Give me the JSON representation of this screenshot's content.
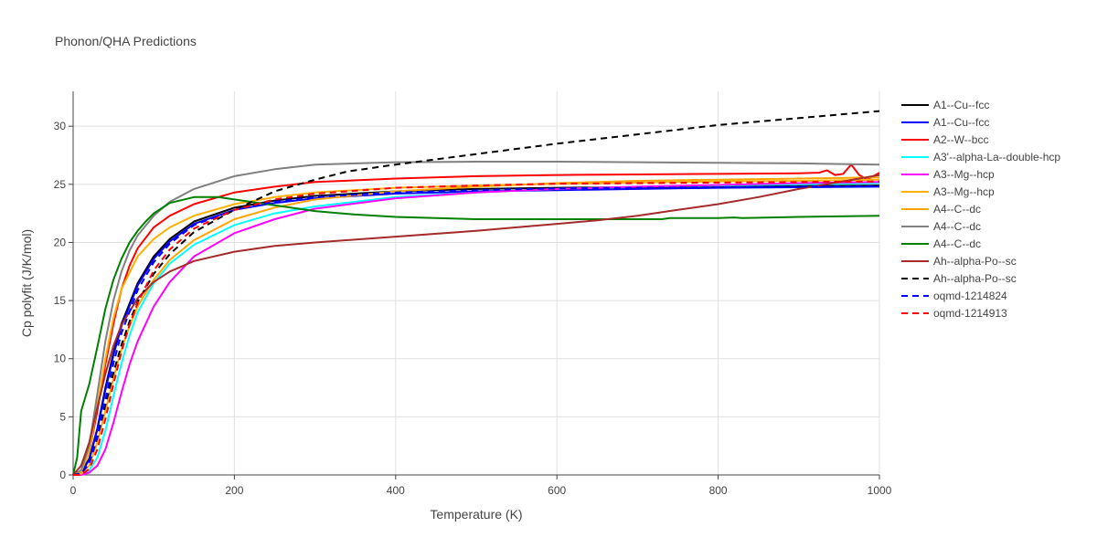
{
  "chart_data": {
    "type": "line",
    "title": "Phonon/QHA Predictions",
    "xlabel": "Temperature (K)",
    "ylabel": "Cp polyfit (J/K/mol)",
    "xlim": [
      0,
      1000
    ],
    "ylim": [
      0,
      33
    ],
    "x_ticks": [
      0,
      200,
      400,
      600,
      800,
      1000
    ],
    "y_ticks": [
      0,
      5,
      10,
      15,
      20,
      25,
      30
    ],
    "grid": true,
    "legend_position": "right",
    "series": [
      {
        "name": "A1--Cu--fcc",
        "color": "#000000",
        "dash": "solid",
        "points": [
          [
            0,
            0
          ],
          [
            10,
            0.2
          ],
          [
            20,
            1.4
          ],
          [
            30,
            4
          ],
          [
            40,
            7.5
          ],
          [
            50,
            10.5
          ],
          [
            60,
            13
          ],
          [
            80,
            16.5
          ],
          [
            100,
            18.8
          ],
          [
            120,
            20.3
          ],
          [
            150,
            21.8
          ],
          [
            200,
            23
          ],
          [
            250,
            23.6
          ],
          [
            300,
            24
          ],
          [
            400,
            24.4
          ],
          [
            500,
            24.6
          ],
          [
            600,
            24.7
          ],
          [
            700,
            24.75
          ],
          [
            800,
            24.8
          ],
          [
            900,
            24.85
          ],
          [
            1000,
            24.9
          ]
        ]
      },
      {
        "name": "A1--Cu--fcc",
        "color": "#0000ff",
        "dash": "solid",
        "points": [
          [
            0,
            0
          ],
          [
            10,
            0.2
          ],
          [
            20,
            1.3
          ],
          [
            30,
            3.9
          ],
          [
            40,
            7.3
          ],
          [
            50,
            10.3
          ],
          [
            60,
            12.8
          ],
          [
            80,
            16.3
          ],
          [
            100,
            18.6
          ],
          [
            120,
            20.1
          ],
          [
            150,
            21.6
          ],
          [
            200,
            22.8
          ],
          [
            250,
            23.4
          ],
          [
            300,
            23.8
          ],
          [
            400,
            24.2
          ],
          [
            500,
            24.4
          ],
          [
            600,
            24.5
          ],
          [
            700,
            24.6
          ],
          [
            800,
            24.7
          ],
          [
            900,
            24.75
          ],
          [
            1000,
            24.8
          ]
        ]
      },
      {
        "name": "A2--W--bcc",
        "color": "#ff0000",
        "dash": "solid",
        "points": [
          [
            0,
            0
          ],
          [
            10,
            0.3
          ],
          [
            20,
            2
          ],
          [
            30,
            5.5
          ],
          [
            40,
            9.5
          ],
          [
            50,
            13
          ],
          [
            60,
            16
          ],
          [
            70,
            18
          ],
          [
            80,
            19.5
          ],
          [
            100,
            21.3
          ],
          [
            120,
            22.3
          ],
          [
            150,
            23.3
          ],
          [
            200,
            24.3
          ],
          [
            250,
            24.8
          ],
          [
            300,
            25.2
          ],
          [
            400,
            25.5
          ],
          [
            500,
            25.7
          ],
          [
            600,
            25.8
          ],
          [
            700,
            25.85
          ],
          [
            800,
            25.9
          ],
          [
            900,
            25.95
          ],
          [
            925,
            26
          ],
          [
            935,
            26.2
          ],
          [
            945,
            25.8
          ],
          [
            955,
            25.9
          ],
          [
            965,
            26.7
          ],
          [
            975,
            25.8
          ],
          [
            985,
            25.4
          ],
          [
            1000,
            26
          ]
        ]
      },
      {
        "name": "A3'--alpha-La--double-hcp",
        "color": "#00ffff",
        "dash": "solid",
        "points": [
          [
            0,
            0
          ],
          [
            10,
            0
          ],
          [
            20,
            0.4
          ],
          [
            30,
            1.5
          ],
          [
            40,
            3.8
          ],
          [
            50,
            6.8
          ],
          [
            60,
            9.6
          ],
          [
            70,
            12
          ],
          [
            80,
            14
          ],
          [
            100,
            16.5
          ],
          [
            120,
            18.2
          ],
          [
            150,
            19.8
          ],
          [
            200,
            21.5
          ],
          [
            250,
            22.5
          ],
          [
            300,
            23.1
          ],
          [
            400,
            23.9
          ],
          [
            500,
            24.3
          ],
          [
            600,
            24.6
          ],
          [
            700,
            24.8
          ],
          [
            800,
            24.9
          ],
          [
            900,
            25
          ],
          [
            1000,
            25.1
          ]
        ]
      },
      {
        "name": "A3--Mg--hcp",
        "color": "#ff00ff",
        "dash": "solid",
        "points": [
          [
            0,
            0
          ],
          [
            10,
            0
          ],
          [
            20,
            0.2
          ],
          [
            30,
            0.8
          ],
          [
            40,
            2.2
          ],
          [
            50,
            4.5
          ],
          [
            60,
            7.1
          ],
          [
            70,
            9.5
          ],
          [
            80,
            11.5
          ],
          [
            100,
            14.5
          ],
          [
            120,
            16.6
          ],
          [
            150,
            18.8
          ],
          [
            200,
            20.8
          ],
          [
            250,
            22
          ],
          [
            300,
            22.9
          ],
          [
            400,
            23.8
          ],
          [
            500,
            24.3
          ],
          [
            600,
            24.6
          ],
          [
            700,
            24.8
          ],
          [
            800,
            24.95
          ],
          [
            900,
            25.1
          ],
          [
            1000,
            25.2
          ]
        ]
      },
      {
        "name": "A3--Mg--hcp",
        "color": "#ffb000",
        "dash": "solid",
        "points": [
          [
            0,
            0
          ],
          [
            10,
            0.3
          ],
          [
            20,
            2
          ],
          [
            30,
            6
          ],
          [
            40,
            10
          ],
          [
            50,
            13.5
          ],
          [
            60,
            16
          ],
          [
            80,
            18.8
          ],
          [
            100,
            20.3
          ],
          [
            120,
            21.3
          ],
          [
            150,
            22.3
          ],
          [
            200,
            23.3
          ],
          [
            250,
            23.9
          ],
          [
            300,
            24.3
          ],
          [
            400,
            24.7
          ],
          [
            500,
            24.9
          ],
          [
            600,
            25.05
          ],
          [
            700,
            25.15
          ],
          [
            800,
            25.25
          ],
          [
            900,
            25.3
          ],
          [
            1000,
            25.4
          ]
        ]
      },
      {
        "name": "A4--C--dc",
        "color": "#ffa500",
        "dash": "solid",
        "points": [
          [
            0,
            0
          ],
          [
            10,
            0.1
          ],
          [
            20,
            0.8
          ],
          [
            30,
            2.8
          ],
          [
            40,
            5.5
          ],
          [
            50,
            8.3
          ],
          [
            60,
            10.8
          ],
          [
            70,
            12.8
          ],
          [
            80,
            14.5
          ],
          [
            100,
            16.8
          ],
          [
            120,
            18.5
          ],
          [
            150,
            20.2
          ],
          [
            200,
            22
          ],
          [
            250,
            23
          ],
          [
            300,
            23.7
          ],
          [
            400,
            24.4
          ],
          [
            500,
            24.8
          ],
          [
            600,
            25.1
          ],
          [
            700,
            25.3
          ],
          [
            800,
            25.4
          ],
          [
            900,
            25.5
          ],
          [
            1000,
            25.6
          ]
        ]
      },
      {
        "name": "A4--C--dc",
        "color": "#808080",
        "dash": "solid",
        "points": [
          [
            0,
            0
          ],
          [
            10,
            0.4
          ],
          [
            20,
            2.5
          ],
          [
            30,
            7
          ],
          [
            40,
            11.5
          ],
          [
            50,
            15
          ],
          [
            60,
            17.5
          ],
          [
            70,
            19.3
          ],
          [
            80,
            20.6
          ],
          [
            100,
            22.3
          ],
          [
            120,
            23.5
          ],
          [
            150,
            24.6
          ],
          [
            200,
            25.7
          ],
          [
            250,
            26.3
          ],
          [
            300,
            26.7
          ],
          [
            400,
            26.9
          ],
          [
            500,
            26.95
          ],
          [
            600,
            26.95
          ],
          [
            700,
            26.9
          ],
          [
            800,
            26.85
          ],
          [
            900,
            26.8
          ],
          [
            1000,
            26.7
          ]
        ]
      },
      {
        "name": "A4--C--dc",
        "color": "#008000",
        "dash": "solid",
        "points": [
          [
            0,
            0
          ],
          [
            5,
            1.5
          ],
          [
            10,
            5.5
          ],
          [
            20,
            7.8
          ],
          [
            30,
            11
          ],
          [
            40,
            14.3
          ],
          [
            50,
            16.8
          ],
          [
            60,
            18.6
          ],
          [
            70,
            20
          ],
          [
            80,
            21
          ],
          [
            90,
            21.8
          ],
          [
            100,
            22.5
          ],
          [
            120,
            23.4
          ],
          [
            150,
            23.9
          ],
          [
            180,
            23.9
          ],
          [
            200,
            23.7
          ],
          [
            250,
            23.2
          ],
          [
            300,
            22.7
          ],
          [
            350,
            22.4
          ],
          [
            400,
            22.2
          ],
          [
            450,
            22.1
          ],
          [
            500,
            22
          ],
          [
            600,
            22
          ],
          [
            700,
            22
          ],
          [
            730,
            22
          ],
          [
            740,
            22.1
          ],
          [
            800,
            22.1
          ],
          [
            820,
            22.15
          ],
          [
            830,
            22.1
          ],
          [
            900,
            22.2
          ],
          [
            1000,
            22.3
          ]
        ]
      },
      {
        "name": "Ah--alpha-Po--sc",
        "color": "#a52a2a",
        "dash": "solid",
        "points": [
          [
            0,
            0
          ],
          [
            10,
            0.8
          ],
          [
            20,
            2.8
          ],
          [
            30,
            5.8
          ],
          [
            40,
            8.7
          ],
          [
            50,
            11.1
          ],
          [
            60,
            12.9
          ],
          [
            80,
            15.2
          ],
          [
            100,
            16.6
          ],
          [
            120,
            17.5
          ],
          [
            150,
            18.4
          ],
          [
            200,
            19.2
          ],
          [
            250,
            19.7
          ],
          [
            300,
            20
          ],
          [
            400,
            20.5
          ],
          [
            500,
            21
          ],
          [
            550,
            21.3
          ],
          [
            600,
            21.6
          ],
          [
            650,
            21.9
          ],
          [
            700,
            22.3
          ],
          [
            750,
            22.8
          ],
          [
            800,
            23.3
          ],
          [
            850,
            23.9
          ],
          [
            900,
            24.6
          ],
          [
            950,
            25.2
          ],
          [
            1000,
            25.8
          ]
        ]
      },
      {
        "name": "Ah--alpha-Po--sc",
        "color": "#000000",
        "dash": "dash",
        "points": [
          [
            0,
            0
          ],
          [
            10,
            0.1
          ],
          [
            20,
            1
          ],
          [
            30,
            3.2
          ],
          [
            40,
            6
          ],
          [
            50,
            8.8
          ],
          [
            60,
            11.2
          ],
          [
            70,
            13.2
          ],
          [
            80,
            14.9
          ],
          [
            100,
            17.3
          ],
          [
            120,
            19
          ],
          [
            150,
            20.9
          ],
          [
            200,
            22.8
          ],
          [
            250,
            24.4
          ],
          [
            300,
            25.4
          ],
          [
            340,
            26.1
          ],
          [
            400,
            26.7
          ],
          [
            500,
            27.6
          ],
          [
            600,
            28.5
          ],
          [
            700,
            29.3
          ],
          [
            800,
            30.1
          ],
          [
            900,
            30.7
          ],
          [
            1000,
            31.3
          ]
        ]
      },
      {
        "name": "oqmd-1214824",
        "color": "#0000ff",
        "dash": "dash",
        "points": [
          [
            0,
            0
          ],
          [
            10,
            0.1
          ],
          [
            20,
            1
          ],
          [
            30,
            3.3
          ],
          [
            40,
            6.5
          ],
          [
            50,
            9.6
          ],
          [
            60,
            12.2
          ],
          [
            80,
            15.9
          ],
          [
            100,
            18.3
          ],
          [
            120,
            19.9
          ],
          [
            150,
            21.5
          ],
          [
            200,
            22.8
          ],
          [
            250,
            23.5
          ],
          [
            300,
            23.9
          ],
          [
            400,
            24.3
          ],
          [
            500,
            24.5
          ],
          [
            600,
            24.65
          ],
          [
            700,
            24.7
          ],
          [
            800,
            24.75
          ],
          [
            900,
            24.8
          ],
          [
            1000,
            24.85
          ]
        ]
      },
      {
        "name": "oqmd-1214913",
        "color": "#ff0000",
        "dash": "dash",
        "points": [
          [
            0,
            0
          ],
          [
            10,
            0
          ],
          [
            20,
            0.5
          ],
          [
            30,
            2.2
          ],
          [
            40,
            4.8
          ],
          [
            50,
            7.8
          ],
          [
            60,
            10.6
          ],
          [
            70,
            12.9
          ],
          [
            80,
            14.8
          ],
          [
            100,
            17.6
          ],
          [
            120,
            19.4
          ],
          [
            150,
            21.2
          ],
          [
            200,
            22.8
          ],
          [
            250,
            23.7
          ],
          [
            300,
            24.2
          ],
          [
            400,
            24.7
          ],
          [
            500,
            24.9
          ],
          [
            600,
            25.05
          ],
          [
            700,
            25.1
          ],
          [
            800,
            25.15
          ],
          [
            900,
            25.2
          ],
          [
            1000,
            25.25
          ]
        ]
      }
    ]
  }
}
